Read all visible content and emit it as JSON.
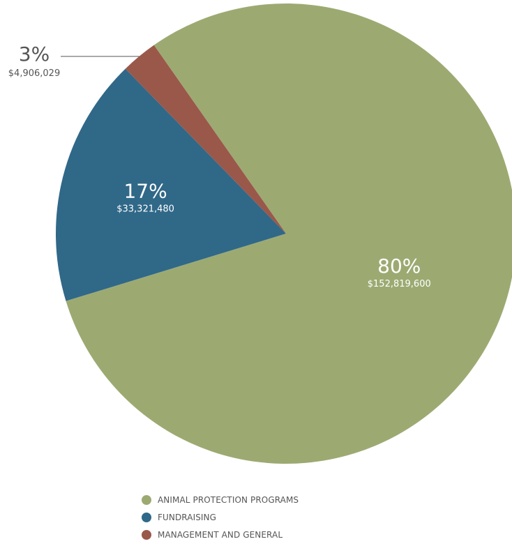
{
  "chart_data": {
    "type": "pie",
    "slices": [
      {
        "label": "ANIMAL PROTECTION PROGRAMS",
        "percent_label": "80%",
        "amount_label": "$152,819,600",
        "value": 152819600,
        "color": "#9caa72"
      },
      {
        "label": "FUNDRAISING",
        "percent_label": "17%",
        "amount_label": "$33,321,480",
        "value": 33321480,
        "color": "#306888"
      },
      {
        "label": "MANAGEMENT AND GENERAL",
        "percent_label": "3%",
        "amount_label": "$4,906,029",
        "value": 4906029,
        "color": "#9a584a"
      }
    ],
    "start_angle_deg": -125,
    "direction": "clockwise",
    "legend_position": "bottom"
  }
}
